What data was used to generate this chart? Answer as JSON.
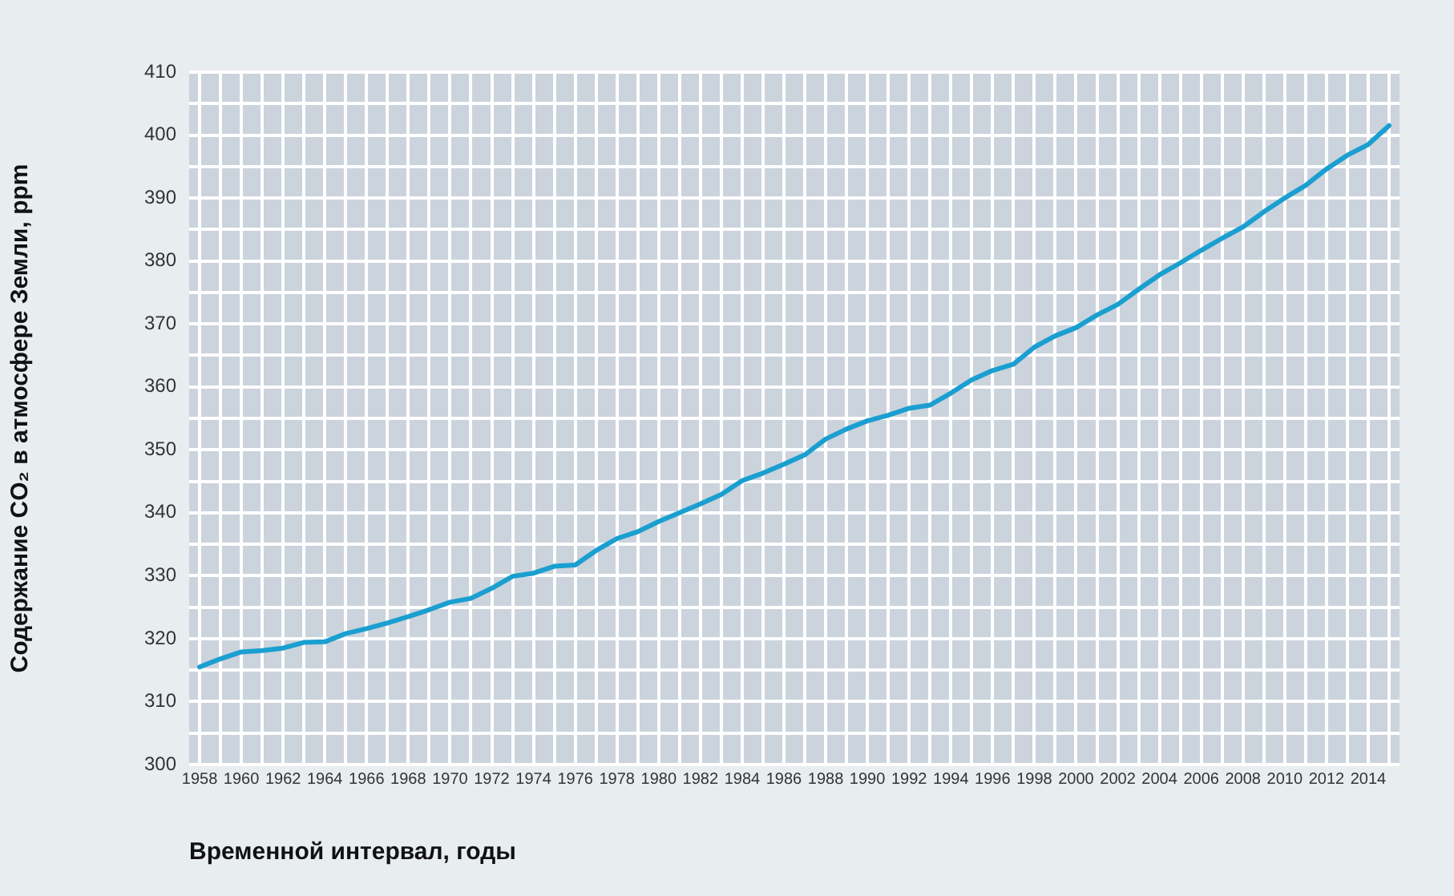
{
  "chart_data": {
    "type": "line",
    "xlabel": "Временной интервал, годы",
    "ylabel": "Содержание CO₂ в атмосфере Земли, ppm",
    "x": [
      1958,
      1959,
      1960,
      1961,
      1962,
      1963,
      1964,
      1965,
      1966,
      1967,
      1968,
      1969,
      1970,
      1971,
      1972,
      1973,
      1974,
      1975,
      1976,
      1977,
      1978,
      1979,
      1980,
      1981,
      1982,
      1983,
      1984,
      1985,
      1986,
      1987,
      1988,
      1989,
      1990,
      1991,
      1992,
      1993,
      1994,
      1995,
      1996,
      1997,
      1998,
      1999,
      2000,
      2001,
      2002,
      2003,
      2004,
      2005,
      2006,
      2007,
      2008,
      2009,
      2010,
      2011,
      2012,
      2013,
      2014,
      2015
    ],
    "series": [
      {
        "color": "#1a9fd0",
        "values": [
          315.5,
          316.8,
          317.9,
          318.1,
          318.5,
          319.4,
          319.5,
          320.8,
          321.6,
          322.5,
          323.5,
          324.6,
          325.8,
          326.4,
          328.0,
          329.9,
          330.4,
          331.5,
          331.7,
          334.0,
          335.9,
          337.0,
          338.6,
          340.0,
          341.4,
          342.9,
          345.1,
          346.3,
          347.7,
          349.2,
          351.7,
          353.3,
          354.6,
          355.5,
          356.6,
          357.1,
          359.0,
          361.1,
          362.6,
          363.6,
          366.3,
          368.1,
          369.4,
          371.4,
          373.1,
          375.5,
          377.8,
          379.7,
          381.7,
          383.6,
          385.4,
          387.8,
          390.0,
          392.0,
          394.6,
          396.8,
          398.5,
          401.5
        ]
      }
    ],
    "xlim": [
      1957.5,
      2015.5
    ],
    "xticks": [
      1958,
      {
        "value": 1959,
        "label": null
      },
      1960,
      {
        "value": 1961,
        "label": null
      },
      1962,
      {
        "value": 1963,
        "label": null
      },
      1964,
      {
        "value": 1965,
        "label": null
      },
      1966,
      {
        "value": 1967,
        "label": null
      },
      1968,
      {
        "value": 1969,
        "label": null
      },
      1970,
      {
        "value": 1971,
        "label": null
      },
      1972,
      {
        "value": 1973,
        "label": null
      },
      1974,
      {
        "value": 1975,
        "label": null
      },
      1976,
      {
        "value": 1977,
        "label": null
      },
      1978,
      {
        "value": 1979,
        "label": null
      },
      1980,
      {
        "value": 1981,
        "label": null
      },
      1982,
      {
        "value": 1983,
        "label": null
      },
      1984,
      {
        "value": 1985,
        "label": null
      },
      1986,
      {
        "value": 1987,
        "label": null
      },
      1988,
      {
        "value": 1989,
        "label": null
      },
      1990,
      {
        "value": 1991,
        "label": null
      },
      1992,
      {
        "value": 1993,
        "label": null
      },
      1994,
      {
        "value": 1995,
        "label": null
      },
      1996,
      {
        "value": 1997,
        "label": null
      },
      1998,
      {
        "value": 1999,
        "label": null
      },
      2000,
      {
        "value": 2001,
        "label": null
      },
      2002,
      {
        "value": 2003,
        "label": null
      },
      2004,
      {
        "value": 2005,
        "label": null
      },
      2006,
      {
        "value": 2007,
        "label": null
      },
      2008,
      {
        "value": 2009,
        "label": null
      },
      2010,
      {
        "value": 2011,
        "label": null
      },
      2012,
      {
        "value": 2013,
        "label": null
      },
      2014,
      {
        "value": 2015,
        "label": null
      }
    ],
    "ylim": [
      300,
      410
    ],
    "yticks": [
      300,
      {
        "value": 305,
        "label": null
      },
      310,
      {
        "value": 315,
        "label": null
      },
      320,
      {
        "value": 325,
        "label": null
      },
      330,
      {
        "value": 335,
        "label": null
      },
      340,
      {
        "value": 345,
        "label": null
      },
      350,
      {
        "value": 355,
        "label": null
      },
      360,
      {
        "value": 365,
        "label": null
      },
      370,
      {
        "value": 375,
        "label": null
      },
      380,
      {
        "value": 385,
        "label": null
      },
      390,
      {
        "value": 395,
        "label": null
      },
      400,
      {
        "value": 405,
        "label": null
      },
      410
    ],
    "grid": true,
    "legend": false,
    "marker": "none",
    "line_style": "solid"
  }
}
